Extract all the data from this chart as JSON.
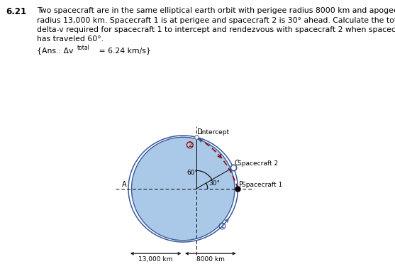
{
  "title": "6.21",
  "lines": [
    "Two spacecraft are in the same elliptical earth orbit with perigee radius 8000 km and apogee",
    "radius 13,000 km. Spacecraft 1 is at perigee and spacecraft 2 is 30° ahead. Calculate the total",
    "delta-v required for spacecraft 1 to intercept and rendezvous with spacecraft 2 when spacecraft 2",
    "has traveled 60°."
  ],
  "ans_prefix": "{Ans.: Δv",
  "ans_sub": "total",
  "ans_suffix": " = 6.24 km/s}",
  "r_p": 8000,
  "r_a": 13000,
  "orbit_color": "#3a5a9b",
  "fill_color": "#aac8e8",
  "transfer_color": "#8b0000",
  "bg_color": "#ffffff"
}
